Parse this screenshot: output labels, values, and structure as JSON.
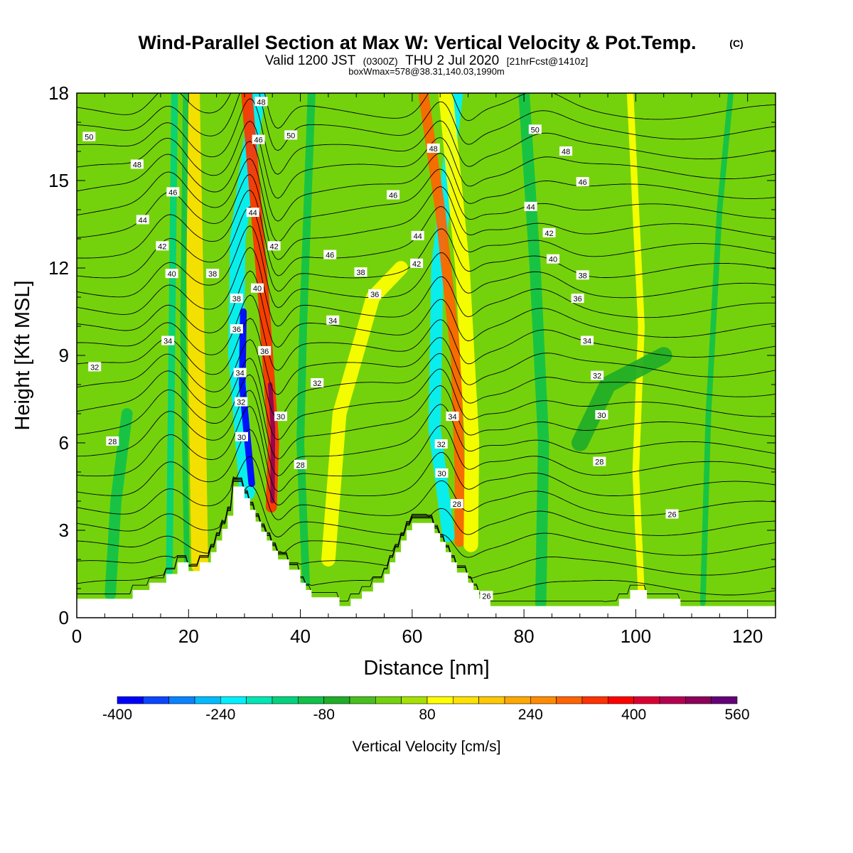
{
  "title": {
    "main": "Wind-Parallel Section at Max W: Vertical Velocity & Pot.Temp.",
    "copyright": "(C)",
    "valid_prefix": "Valid 1200 JST",
    "valid_utc": "(0300Z)",
    "valid_date": "THU 2 Jul 2020",
    "forecast": "[21hrFcst@1410z]",
    "box_info": "boxWmax=578@38.31,140.03,1990m"
  },
  "chart_data": {
    "type": "heatmap",
    "xlabel": "Distance [nm]",
    "ylabel": "Height [Kft MSL]",
    "xlim": [
      0,
      125
    ],
    "ylim": [
      0,
      18
    ],
    "xticks": [
      0,
      20,
      40,
      60,
      80,
      100,
      120
    ],
    "yticks": [
      0,
      3,
      6,
      9,
      12,
      15,
      18
    ],
    "colorbar": {
      "label": "Vertical Velocity [cm/s]",
      "levels": [
        -400,
        -360,
        -320,
        -280,
        -240,
        -200,
        -160,
        -120,
        -80,
        -40,
        0,
        40,
        80,
        120,
        160,
        200,
        240,
        280,
        320,
        360,
        400,
        440,
        480,
        520,
        560
      ],
      "tick_labels": [
        "-400",
        "-240",
        "-80",
        "80",
        "240",
        "400",
        "560"
      ],
      "colors": [
        "#0000ff",
        "#0a46ff",
        "#0a82ff",
        "#00bbff",
        "#00f0ff",
        "#00e6b4",
        "#00d27d",
        "#10c14a",
        "#20ad28",
        "#48bf1e",
        "#74d20c",
        "#a6e200",
        "#ffff00",
        "#ffe100",
        "#ffc800",
        "#ffa800",
        "#ff8c00",
        "#ff6400",
        "#ff3200",
        "#ff0000",
        "#dc0032",
        "#b40050",
        "#8c005a",
        "#640078"
      ]
    },
    "terrain": [
      [
        0,
        0.65
      ],
      [
        10,
        0.65
      ],
      [
        10,
        0.95
      ],
      [
        13,
        0.95
      ],
      [
        13,
        1.2
      ],
      [
        16,
        1.2
      ],
      [
        16,
        1.5
      ],
      [
        18,
        1.5
      ],
      [
        18,
        1.9
      ],
      [
        20,
        1.9
      ],
      [
        20,
        1.6
      ],
      [
        22,
        1.6
      ],
      [
        22,
        1.9
      ],
      [
        24,
        1.9
      ],
      [
        24,
        2.25
      ],
      [
        25,
        2.25
      ],
      [
        25,
        2.65
      ],
      [
        26,
        2.65
      ],
      [
        26,
        3.05
      ],
      [
        27,
        3.05
      ],
      [
        27,
        3.5
      ],
      [
        28,
        3.5
      ],
      [
        28,
        4.5
      ],
      [
        30,
        4.5
      ],
      [
        30,
        4.1
      ],
      [
        31,
        4.1
      ],
      [
        31,
        3.7
      ],
      [
        32,
        3.7
      ],
      [
        32,
        3.3
      ],
      [
        33,
        3.3
      ],
      [
        33,
        2.95
      ],
      [
        34,
        2.95
      ],
      [
        34,
        2.65
      ],
      [
        35,
        2.65
      ],
      [
        35,
        2.3
      ],
      [
        36,
        2.3
      ],
      [
        36,
        2.0
      ],
      [
        38,
        2.0
      ],
      [
        38,
        1.65
      ],
      [
        40,
        1.65
      ],
      [
        40,
        1.2
      ],
      [
        41,
        1.2
      ],
      [
        41,
        0.95
      ],
      [
        42,
        0.95
      ],
      [
        42,
        0.7
      ],
      [
        47,
        0.7
      ],
      [
        47,
        0.4
      ],
      [
        49,
        0.4
      ],
      [
        49,
        0.65
      ],
      [
        51,
        0.65
      ],
      [
        51,
        0.9
      ],
      [
        53,
        0.9
      ],
      [
        53,
        1.2
      ],
      [
        55,
        1.2
      ],
      [
        55,
        1.5
      ],
      [
        56,
        1.5
      ],
      [
        56,
        1.9
      ],
      [
        57,
        1.9
      ],
      [
        57,
        2.25
      ],
      [
        58,
        2.25
      ],
      [
        58,
        2.65
      ],
      [
        59,
        2.65
      ],
      [
        59,
        3.0
      ],
      [
        60,
        3.0
      ],
      [
        60,
        3.25
      ],
      [
        64,
        3.25
      ],
      [
        64,
        2.9
      ],
      [
        65,
        2.9
      ],
      [
        65,
        2.6
      ],
      [
        66,
        2.6
      ],
      [
        66,
        2.25
      ],
      [
        67,
        2.25
      ],
      [
        67,
        1.9
      ],
      [
        68,
        1.9
      ],
      [
        68,
        1.55
      ],
      [
        70,
        1.55
      ],
      [
        70,
        1.2
      ],
      [
        71,
        1.2
      ],
      [
        71,
        0.95
      ],
      [
        72,
        0.95
      ],
      [
        72,
        0.65
      ],
      [
        74,
        0.65
      ],
      [
        74,
        0.4
      ],
      [
        97,
        0.4
      ],
      [
        97,
        0.65
      ],
      [
        99,
        0.65
      ],
      [
        99,
        0.95
      ],
      [
        102,
        0.95
      ],
      [
        102,
        0.65
      ],
      [
        108,
        0.65
      ],
      [
        108,
        0.4
      ],
      [
        125,
        0.4
      ]
    ],
    "bands": [
      {
        "w": -160,
        "pts": [
          [
            16.5,
            0.5
          ],
          [
            17.5,
            18
          ]
        ],
        "width": 1.2
      },
      {
        "w": -240,
        "pts": [
          [
            30.5,
            4.3
          ],
          [
            28.5,
            9
          ],
          [
            28.8,
            13
          ],
          [
            32.4,
            18
          ]
        ],
        "width": 2.8
      },
      {
        "w": -400,
        "pts": [
          [
            31.3,
            4.6
          ],
          [
            29.6,
            8
          ],
          [
            29.8,
            10.5
          ]
        ],
        "width": 1.2
      },
      {
        "w": 320,
        "pts": [
          [
            34.8,
            3.8
          ],
          [
            35.2,
            6
          ],
          [
            33.4,
            11
          ],
          [
            30.4,
            18
          ]
        ],
        "width": 2.0
      },
      {
        "w": 480,
        "pts": [
          [
            35.0,
            4.0
          ],
          [
            35.1,
            6.5
          ],
          [
            34.6,
            8
          ]
        ],
        "width": 0.8
      },
      {
        "w": 120,
        "pts": [
          [
            22,
            1.8
          ],
          [
            21.5,
            8
          ],
          [
            20.5,
            18
          ]
        ],
        "width": 3.0
      },
      {
        "w": -120,
        "pts": [
          [
            19.7,
            1.8
          ],
          [
            19,
            10
          ],
          [
            19.5,
            18
          ]
        ],
        "width": 1.0
      },
      {
        "w": -240,
        "pts": [
          [
            66.5,
            2.8
          ],
          [
            64,
            6.5
          ],
          [
            64.5,
            12
          ],
          [
            68,
            18
          ]
        ],
        "width": 2.2
      },
      {
        "w": 280,
        "pts": [
          [
            68.5,
            2.6
          ],
          [
            68.5,
            5
          ],
          [
            67.8,
            9
          ],
          [
            65,
            14
          ],
          [
            62,
            18
          ]
        ],
        "width": 1.8
      },
      {
        "w": 80,
        "pts": [
          [
            70.5,
            2.5
          ],
          [
            70.7,
            6
          ],
          [
            69,
            12
          ],
          [
            66,
            18
          ]
        ],
        "width": 2.6
      },
      {
        "w": -120,
        "pts": [
          [
            41,
            1.2
          ],
          [
            40,
            6
          ],
          [
            40.5,
            10
          ],
          [
            42,
            18
          ]
        ],
        "width": 1.4
      },
      {
        "w": 80,
        "pts": [
          [
            45,
            2
          ],
          [
            47,
            7
          ],
          [
            53,
            11
          ],
          [
            58,
            12
          ]
        ],
        "width": 2.5
      },
      {
        "w": -120,
        "pts": [
          [
            83,
            0.5
          ],
          [
            83.5,
            6
          ],
          [
            82,
            12
          ],
          [
            80,
            18
          ]
        ],
        "width": 2.0
      },
      {
        "w": 80,
        "pts": [
          [
            101,
            0.8
          ],
          [
            100,
            5
          ],
          [
            101,
            10
          ],
          [
            99,
            18
          ]
        ],
        "width": 1.2
      },
      {
        "w": -120,
        "pts": [
          [
            112,
            0.5
          ],
          [
            113,
            7
          ],
          [
            115,
            14
          ],
          [
            117,
            18
          ]
        ],
        "width": 1.0
      },
      {
        "w": -120,
        "pts": [
          [
            6,
            0.8
          ],
          [
            7,
            4
          ],
          [
            9,
            7
          ]
        ],
        "width": 2.0
      },
      {
        "w": -80,
        "pts": [
          [
            90,
            6
          ],
          [
            95,
            8
          ],
          [
            105,
            9
          ]
        ],
        "width": 3.0
      }
    ],
    "contour_labels": [
      {
        "text": "50",
        "x": 2.2,
        "y": 16.5
      },
      {
        "text": "48",
        "x": 10.8,
        "y": 15.55
      },
      {
        "text": "46",
        "x": 17.2,
        "y": 14.6
      },
      {
        "text": "44",
        "x": 11.8,
        "y": 13.65
      },
      {
        "text": "42",
        "x": 15.3,
        "y": 12.75
      },
      {
        "text": "40",
        "x": 17,
        "y": 11.8
      },
      {
        "text": "38",
        "x": 24.3,
        "y": 11.8
      },
      {
        "text": "34",
        "x": 16.3,
        "y": 9.5
      },
      {
        "text": "32",
        "x": 3.2,
        "y": 8.6
      },
      {
        "text": "28",
        "x": 6.4,
        "y": 6.05
      },
      {
        "text": "48",
        "x": 33,
        "y": 17.7
      },
      {
        "text": "46",
        "x": 32.5,
        "y": 16.4
      },
      {
        "text": "44",
        "x": 31.5,
        "y": 13.9
      },
      {
        "text": "42",
        "x": 35.3,
        "y": 12.75
      },
      {
        "text": "40",
        "x": 32.3,
        "y": 11.3
      },
      {
        "text": "38",
        "x": 28.6,
        "y": 10.95
      },
      {
        "text": "36",
        "x": 28.6,
        "y": 9.9
      },
      {
        "text": "34",
        "x": 29.2,
        "y": 8.4
      },
      {
        "text": "32",
        "x": 29.4,
        "y": 7.4
      },
      {
        "text": "30",
        "x": 29.5,
        "y": 6.2
      },
      {
        "text": "36",
        "x": 33.6,
        "y": 9.15
      },
      {
        "text": "30",
        "x": 36.5,
        "y": 6.9
      },
      {
        "text": "28",
        "x": 40,
        "y": 5.25
      },
      {
        "text": "50",
        "x": 38.3,
        "y": 16.55
      },
      {
        "text": "46",
        "x": 45.3,
        "y": 12.45
      },
      {
        "text": "38",
        "x": 50.8,
        "y": 11.85
      },
      {
        "text": "36",
        "x": 53.3,
        "y": 11.1
      },
      {
        "text": "34",
        "x": 45.8,
        "y": 10.2
      },
      {
        "text": "32",
        "x": 43,
        "y": 8.05
      },
      {
        "text": "46",
        "x": 56.6,
        "y": 14.5
      },
      {
        "text": "44",
        "x": 61,
        "y": 13.1
      },
      {
        "text": "42",
        "x": 60.8,
        "y": 12.15
      },
      {
        "text": "48",
        "x": 63.8,
        "y": 16.1
      },
      {
        "text": "34",
        "x": 67.2,
        "y": 6.9
      },
      {
        "text": "32",
        "x": 65.2,
        "y": 5.95
      },
      {
        "text": "30",
        "x": 65.3,
        "y": 4.95
      },
      {
        "text": "28",
        "x": 68,
        "y": 3.9
      },
      {
        "text": "26",
        "x": 73.3,
        "y": 0.75
      },
      {
        "text": "50",
        "x": 82,
        "y": 16.75
      },
      {
        "text": "48",
        "x": 87.5,
        "y": 16.0
      },
      {
        "text": "46",
        "x": 90.5,
        "y": 14.95
      },
      {
        "text": "44",
        "x": 81.2,
        "y": 14.1
      },
      {
        "text": "42",
        "x": 84.5,
        "y": 13.2
      },
      {
        "text": "40",
        "x": 85.2,
        "y": 12.3
      },
      {
        "text": "38",
        "x": 90.5,
        "y": 11.75
      },
      {
        "text": "36",
        "x": 89.6,
        "y": 10.95
      },
      {
        "text": "34",
        "x": 91.3,
        "y": 9.5
      },
      {
        "text": "32",
        "x": 93.1,
        "y": 8.3
      },
      {
        "text": "30",
        "x": 93.9,
        "y": 6.95
      },
      {
        "text": "28",
        "x": 93.5,
        "y": 5.35
      },
      {
        "text": "26",
        "x": 106.5,
        "y": 3.55
      }
    ]
  }
}
